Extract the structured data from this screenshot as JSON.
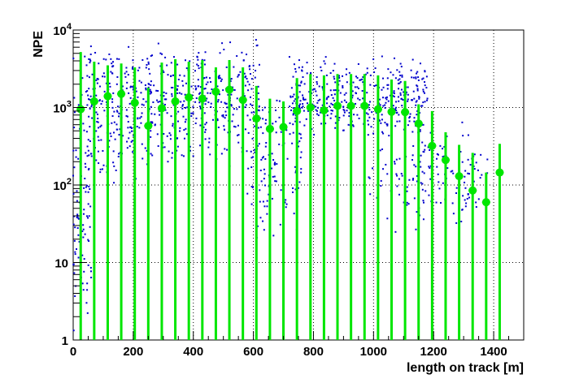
{
  "chart_data": {
    "type": "scatter",
    "xlabel": "length on track [m]",
    "ylabel": "NPE",
    "xlim": [
      0,
      1500
    ],
    "ylim": [
      1,
      10000
    ],
    "yscale": "log",
    "grid": true,
    "x_ticks": [
      "0",
      "200",
      "400",
      "600",
      "800",
      "1000",
      "1200",
      "1400"
    ],
    "y_ticks": [
      {
        "label": "1",
        "exp": ""
      },
      {
        "label": "10",
        "exp": ""
      },
      {
        "label": "10",
        "exp": "2"
      },
      {
        "label": "10",
        "exp": "3"
      },
      {
        "label": "10",
        "exp": "4"
      }
    ],
    "colors": {
      "scatter": "#0000cc",
      "profile": "#00e600"
    },
    "profile": {
      "x": [
        25,
        70,
        115,
        160,
        205,
        250,
        295,
        340,
        385,
        430,
        475,
        520,
        565,
        610,
        655,
        700,
        745,
        790,
        835,
        880,
        925,
        970,
        1015,
        1060,
        1105,
        1150,
        1195,
        1240,
        1285,
        1330,
        1375,
        1420
      ],
      "y": [
        950,
        1200,
        1400,
        1500,
        1150,
        580,
        980,
        1200,
        1350,
        1300,
        1600,
        1700,
        1250,
        720,
        530,
        560,
        900,
        1000,
        920,
        1050,
        1050,
        1050,
        950,
        880,
        870,
        620,
        320,
        210,
        130,
        85,
        60,
        145
      ],
      "ylo": [
        1,
        1,
        1,
        1,
        1,
        1,
        1,
        1,
        1,
        1,
        1,
        1,
        1,
        1,
        1,
        1,
        1,
        1,
        1,
        1,
        1,
        1,
        1,
        1,
        1,
        1,
        1,
        1,
        1,
        1,
        1,
        1
      ],
      "yhi": [
        5200,
        3900,
        3500,
        3700,
        3300,
        1800,
        3800,
        4200,
        3900,
        4100,
        3300,
        4100,
        3300,
        1900,
        1300,
        1200,
        2400,
        2700,
        2600,
        2700,
        2700,
        2700,
        2600,
        2300,
        2200,
        1100,
        900,
        480,
        330,
        260,
        145,
        340
      ]
    },
    "scatter_model": {
      "seed": 7,
      "clusters": [
        {
          "x": [
            0,
            60
          ],
          "logy": [
            0.0,
            4.0
          ],
          "n": 110
        },
        {
          "x": [
            50,
            260
          ],
          "logy": [
            2.0,
            3.95
          ],
          "n": 230
        },
        {
          "x": [
            250,
            620
          ],
          "logy": [
            2.2,
            3.95
          ],
          "n": 360
        },
        {
          "x": [
            580,
            760
          ],
          "logy": [
            1.1,
            3.5
          ],
          "n": 130
        },
        {
          "x": [
            720,
            1180
          ],
          "logy": [
            2.6,
            3.7
          ],
          "n": 420
        },
        {
          "x": [
            980,
            1170
          ],
          "logy": [
            1.3,
            3.2
          ],
          "n": 70
        },
        {
          "x": [
            1150,
            1380
          ],
          "logy": [
            1.4,
            2.9
          ],
          "n": 110
        }
      ]
    }
  }
}
